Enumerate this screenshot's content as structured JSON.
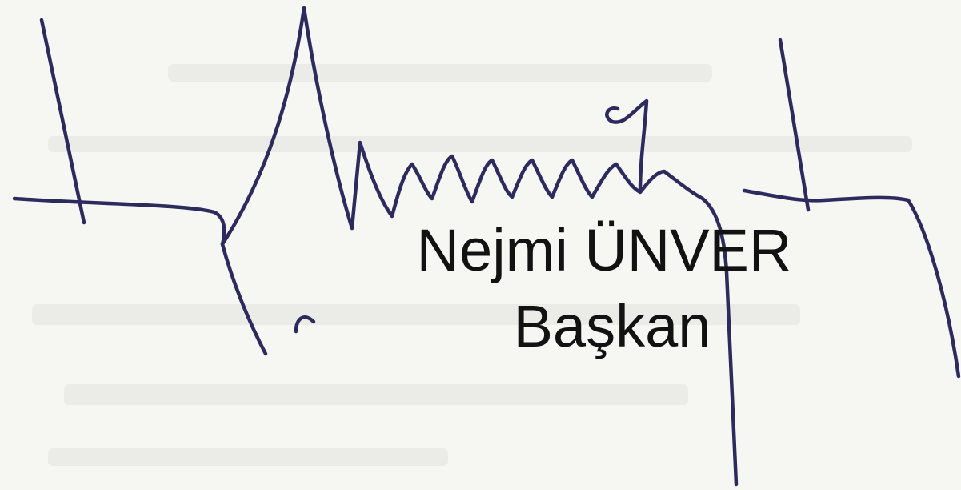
{
  "signature": {
    "name": "Nejmi ÜNVER",
    "title": "Başkan"
  }
}
